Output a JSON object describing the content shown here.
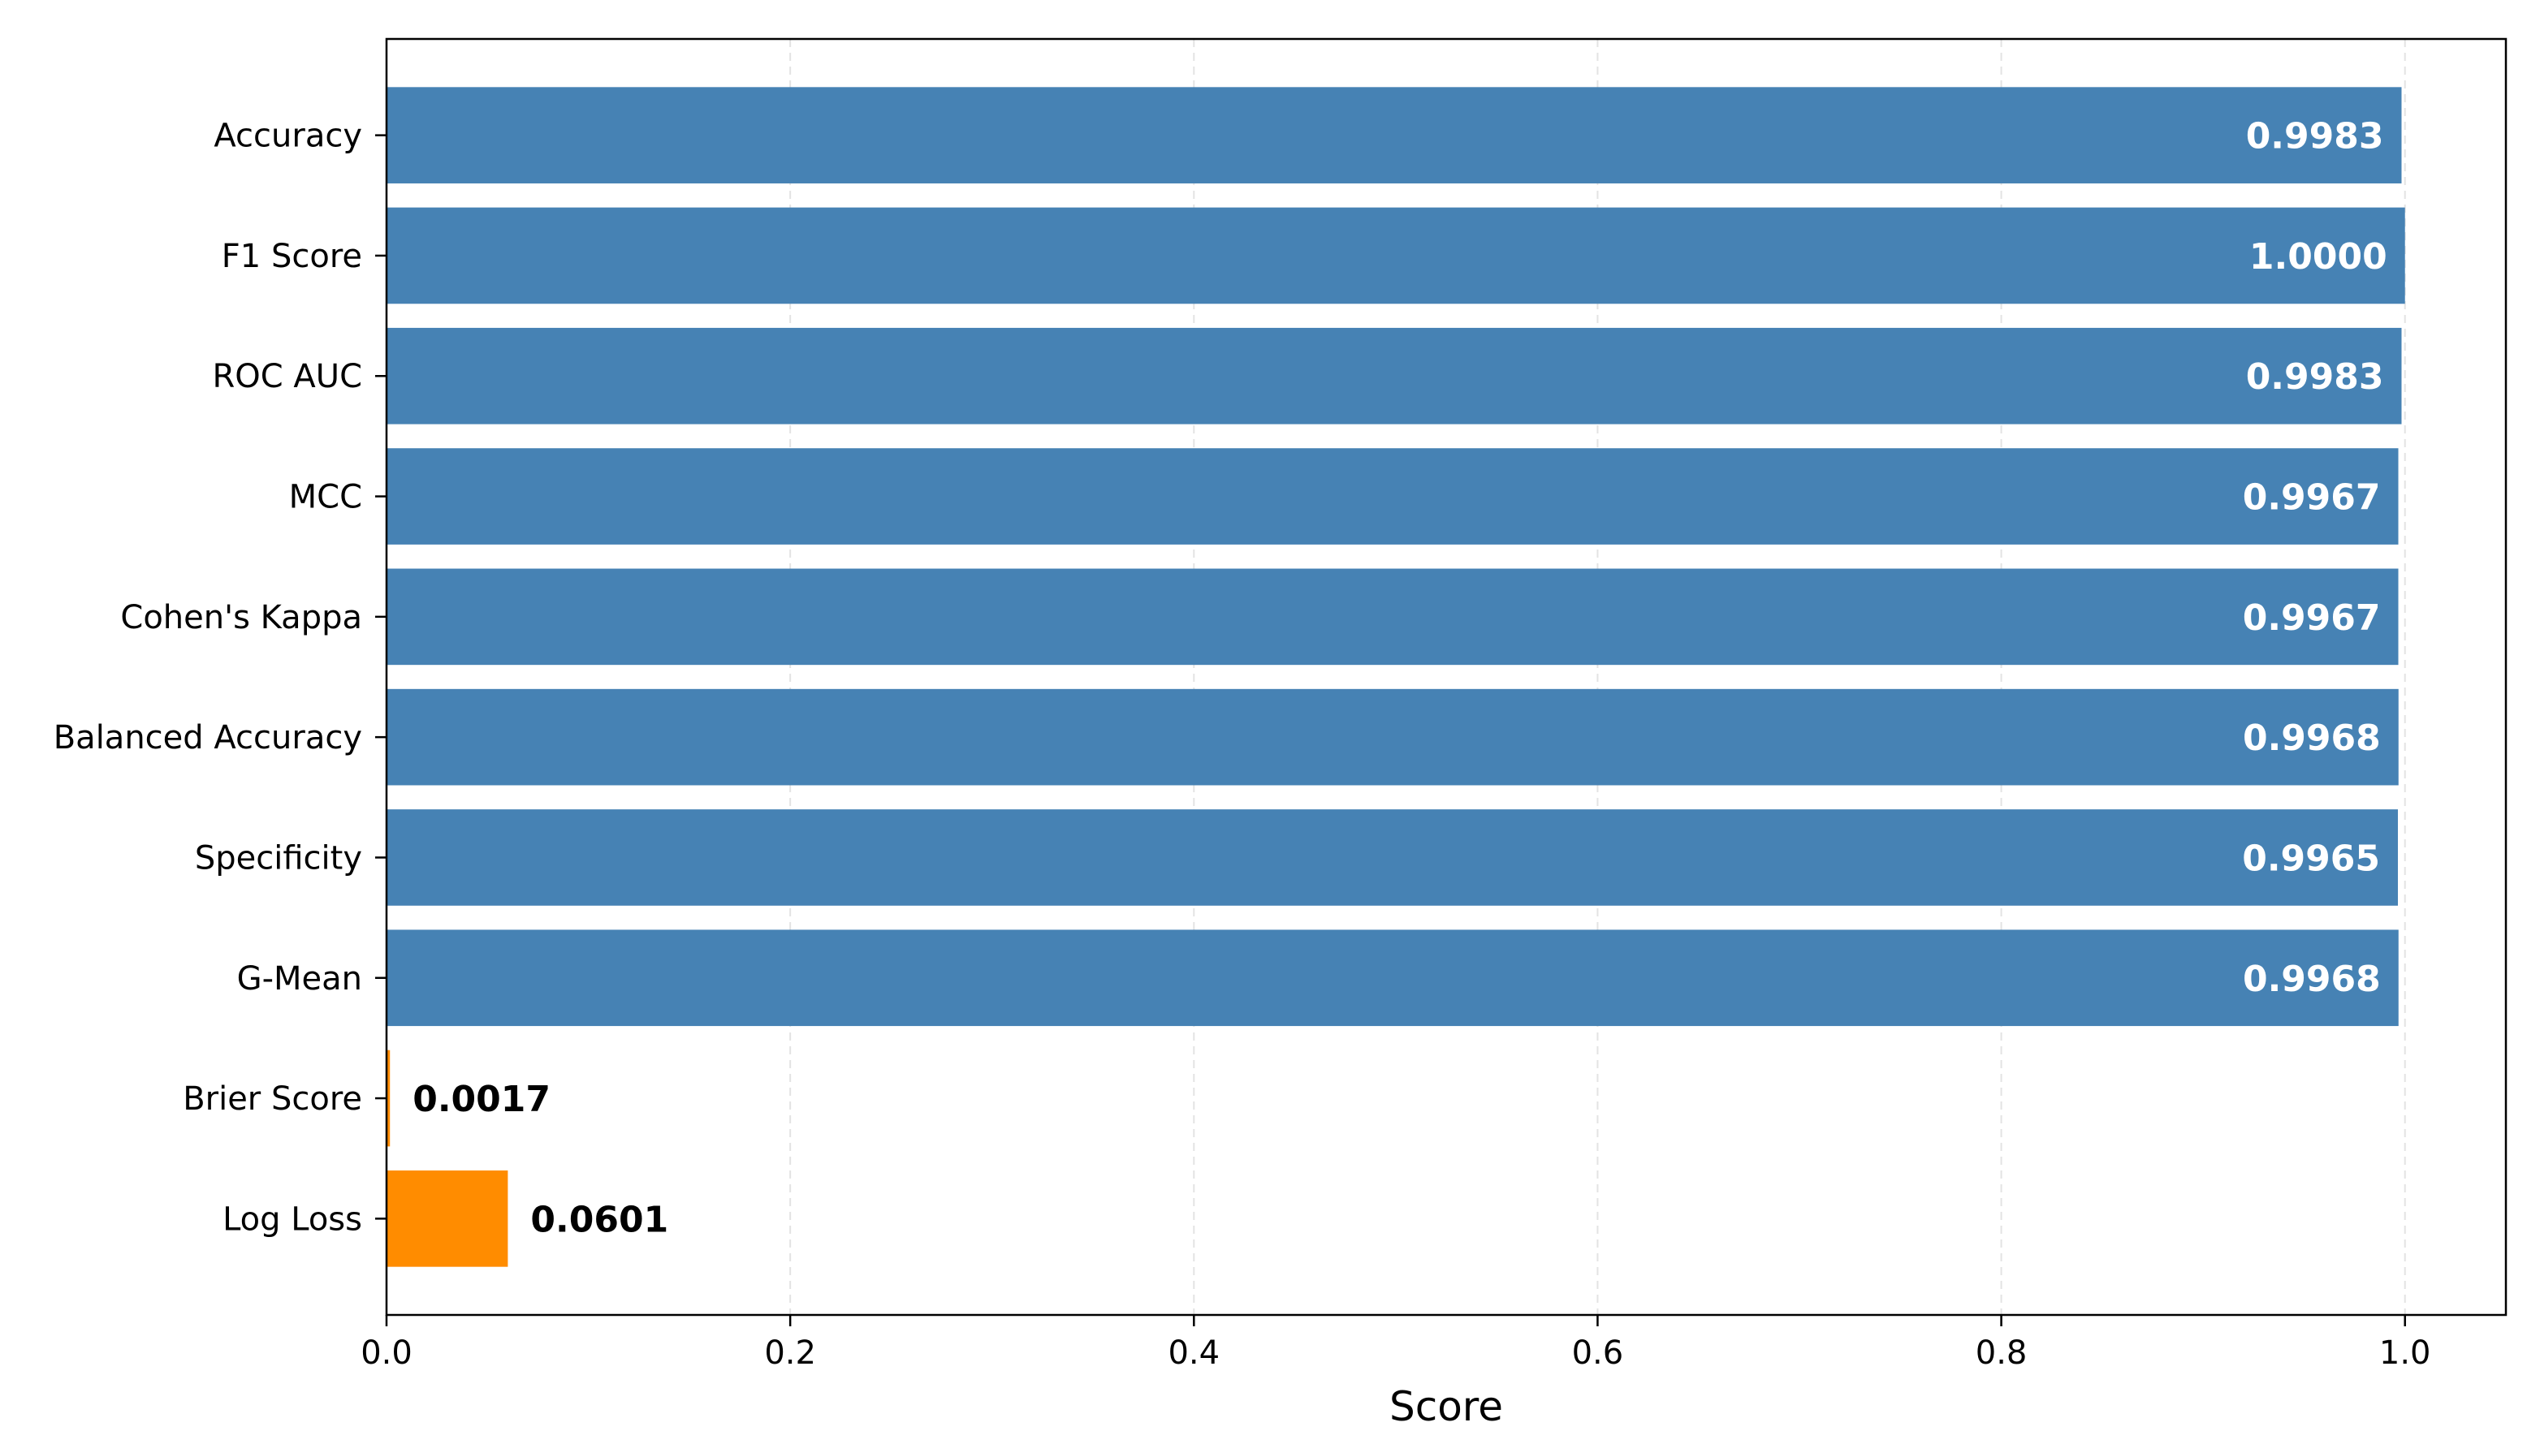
{
  "chart_data": {
    "type": "bar",
    "orientation": "horizontal",
    "categories": [
      "Accuracy",
      "F1 Score",
      "ROC AUC",
      "MCC",
      "Cohen's Kappa",
      "Balanced Accuracy",
      "Specificity",
      "G-Mean",
      "Brier Score",
      "Log Loss"
    ],
    "values": [
      0.9983,
      1.0,
      0.9983,
      0.9967,
      0.9967,
      0.9968,
      0.9965,
      0.9968,
      0.0017,
      0.0601
    ],
    "value_labels": [
      "0.9983",
      "1.0000",
      "0.9983",
      "0.9967",
      "0.9967",
      "0.9968",
      "0.9965",
      "0.9968",
      "0.0017",
      "0.0601"
    ],
    "bar_colors": [
      "#4682b4",
      "#4682b4",
      "#4682b4",
      "#4682b4",
      "#4682b4",
      "#4682b4",
      "#4682b4",
      "#4682b4",
      "#ff8c00",
      "#ff8c00"
    ],
    "label_colors": [
      "#ffffff",
      "#ffffff",
      "#ffffff",
      "#ffffff",
      "#ffffff",
      "#ffffff",
      "#ffffff",
      "#ffffff",
      "#000000",
      "#000000"
    ],
    "title": "",
    "xlabel": "Score",
    "ylabel": "",
    "xlim": [
      0,
      1.05
    ],
    "xticks": [
      0.0,
      0.2,
      0.4,
      0.6,
      0.8,
      1.0
    ],
    "xtick_labels": [
      "0.0",
      "0.2",
      "0.4",
      "0.6",
      "0.8",
      "1.0"
    ],
    "grid": "x-dashed"
  }
}
